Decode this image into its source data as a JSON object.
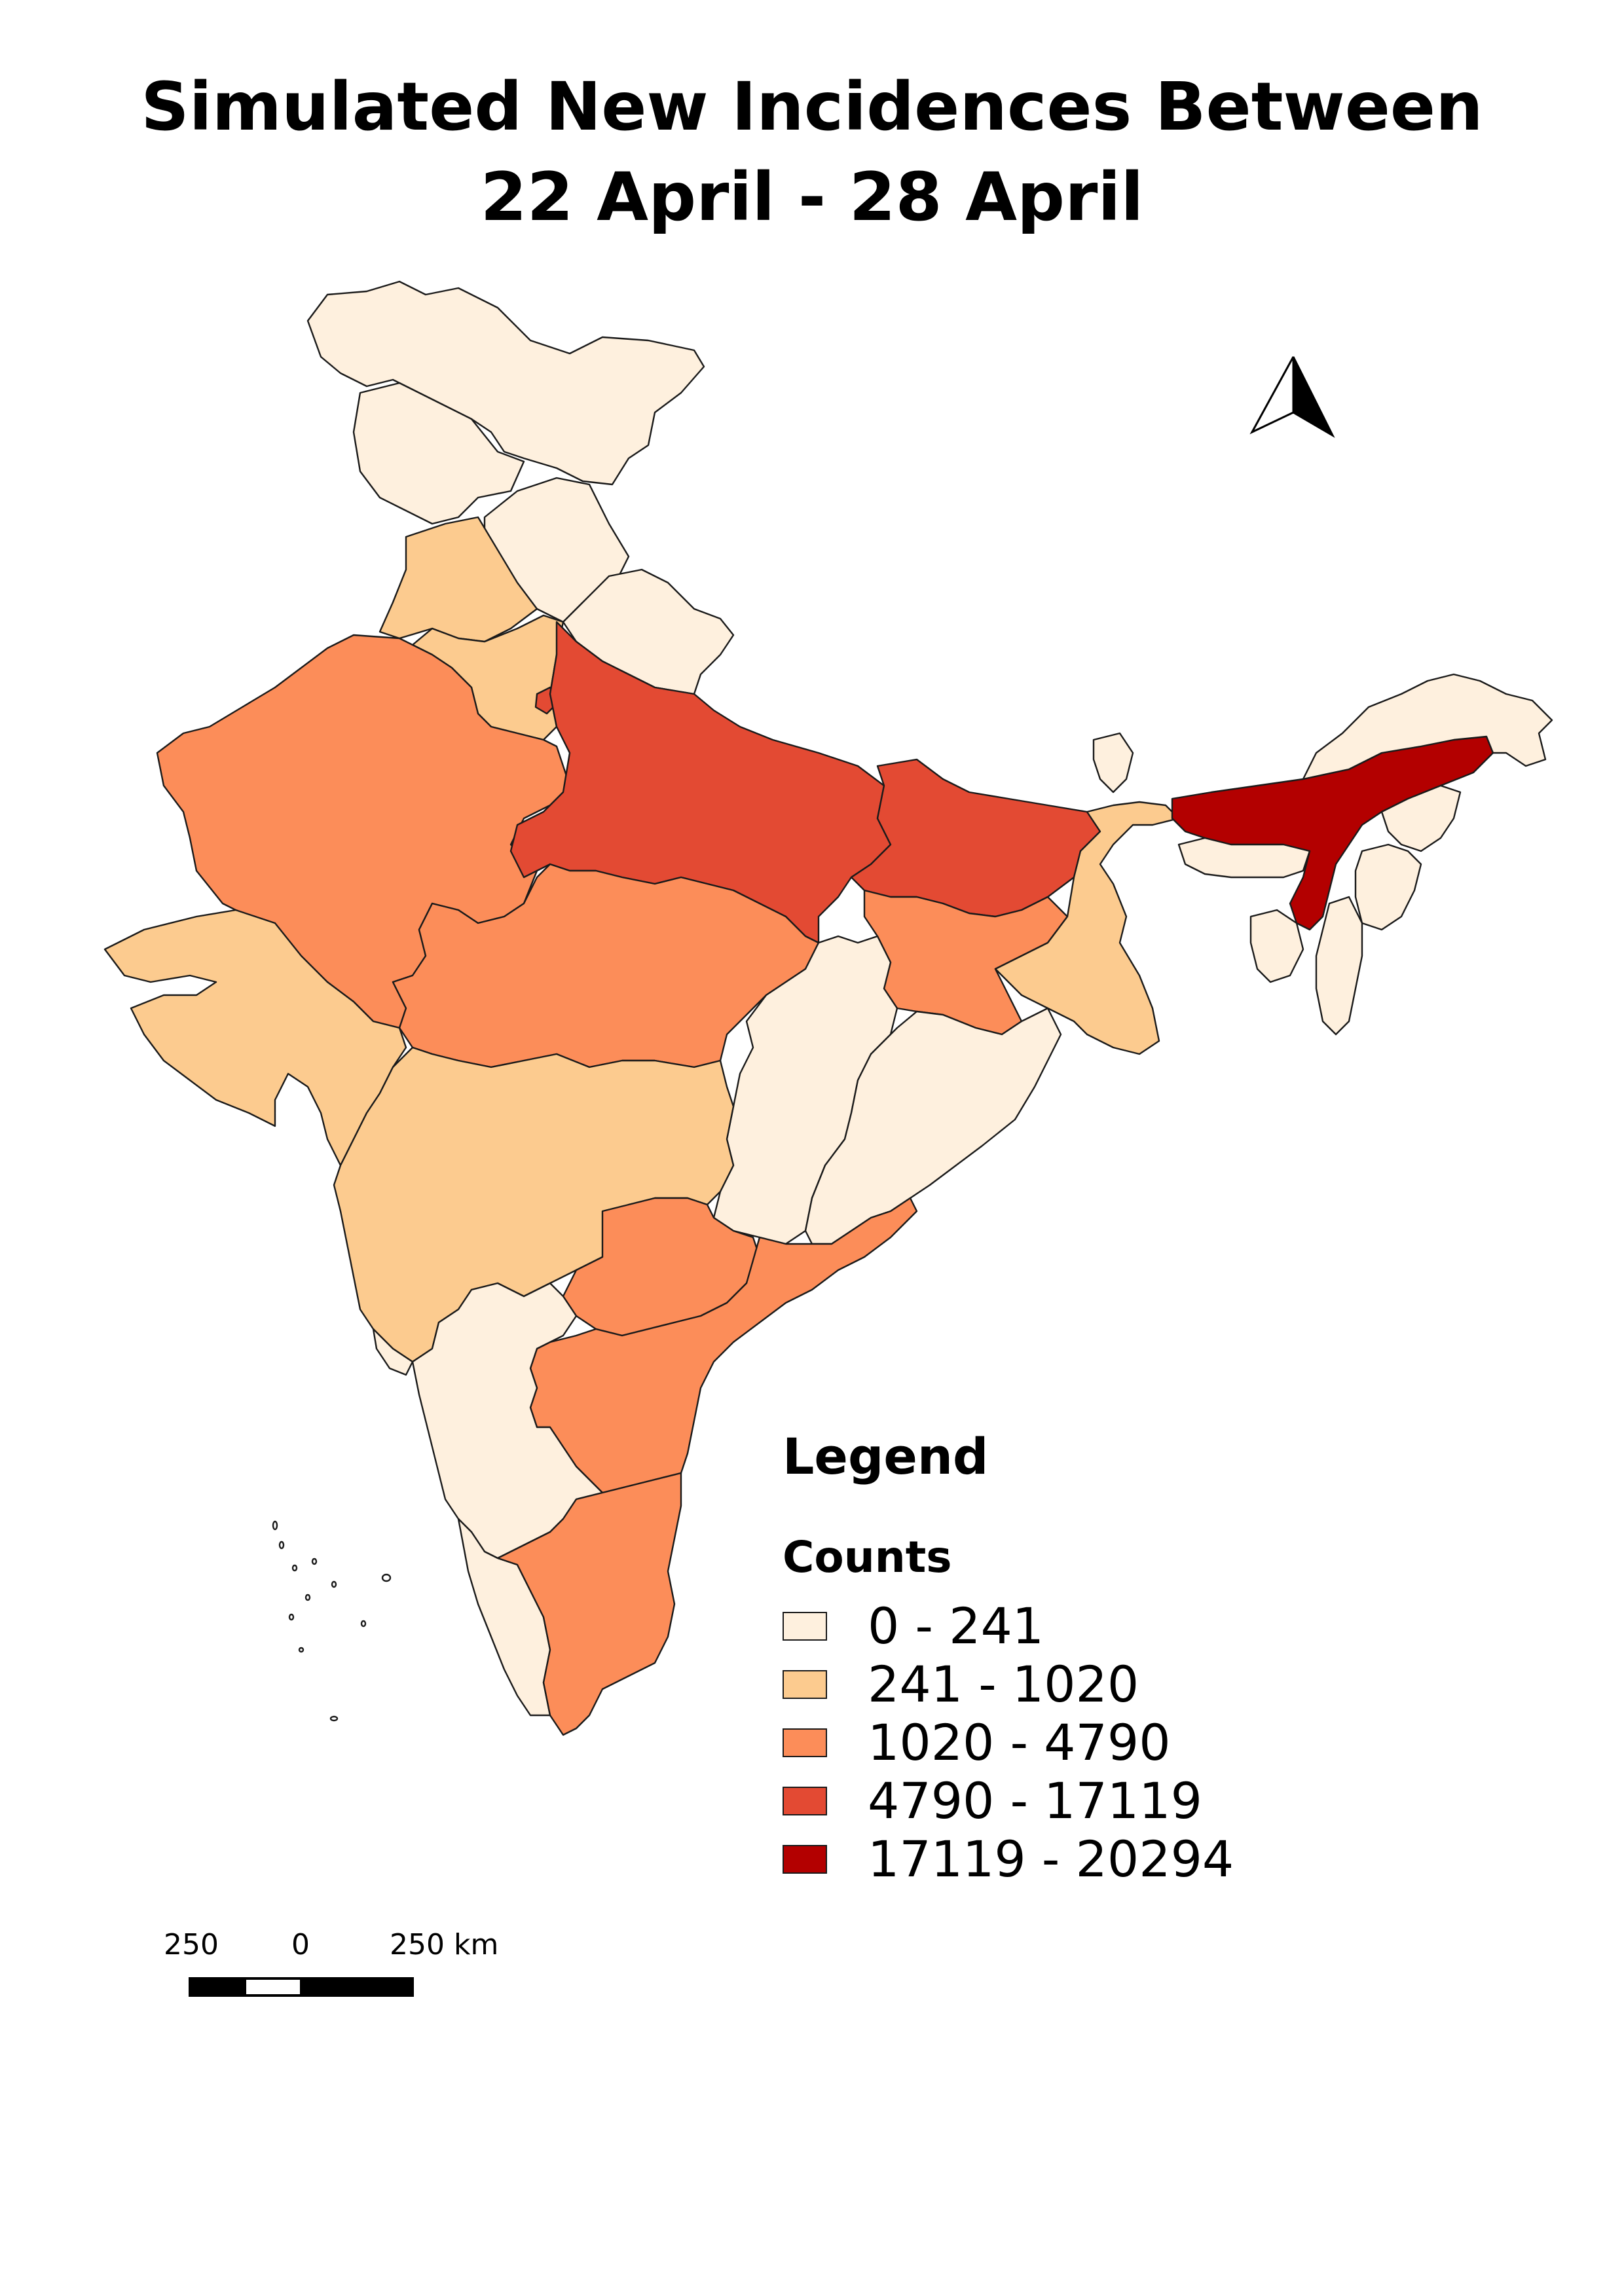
{
  "title": {
    "line1": "Simulated New Incidences Between",
    "line2": "22 April - 28 April"
  },
  "legend": {
    "heading": "Legend",
    "subheading": "Counts",
    "classes": [
      {
        "label": "0 - 241",
        "color": "#fef0de"
      },
      {
        "label": "241 - 1020",
        "color": "#fccb8f"
      },
      {
        "label": "1020 - 4790",
        "color": "#fc8d59"
      },
      {
        "label": "4790 - 17119",
        "color": "#e34a33"
      },
      {
        "label": "17119 - 20294",
        "color": "#b30000"
      }
    ]
  },
  "scale_bar": {
    "labels": [
      "250",
      "0",
      "250 km"
    ]
  },
  "north_arrow": {
    "icon": "north-arrow-icon"
  },
  "map": {
    "country": "India",
    "regions": [
      {
        "name": "Jammu and Kashmir",
        "class": "0 - 241"
      },
      {
        "name": "Himachal Pradesh",
        "class": "0 - 241"
      },
      {
        "name": "Punjab",
        "class": "241 - 1020"
      },
      {
        "name": "Uttarakhand",
        "class": "0 - 241"
      },
      {
        "name": "Haryana",
        "class": "241 - 1020"
      },
      {
        "name": "Rajasthan",
        "class": "1020 - 4790"
      },
      {
        "name": "Uttar Pradesh",
        "class": "4790 - 17119"
      },
      {
        "name": "Bihar",
        "class": "4790 - 17119"
      },
      {
        "name": "Gujarat",
        "class": "241 - 1020"
      },
      {
        "name": "Madhya Pradesh",
        "class": "1020 - 4790"
      },
      {
        "name": "Jharkhand",
        "class": "1020 - 4790"
      },
      {
        "name": "West Bengal",
        "class": "241 - 1020"
      },
      {
        "name": "Chhattisgarh",
        "class": "0 - 241"
      },
      {
        "name": "Odisha",
        "class": "0 - 241"
      },
      {
        "name": "Maharashtra",
        "class": "241 - 1020"
      },
      {
        "name": "Telangana",
        "class": "1020 - 4790"
      },
      {
        "name": "Andhra Pradesh",
        "class": "1020 - 4790"
      },
      {
        "name": "Karnataka",
        "class": "0 - 241"
      },
      {
        "name": "Goa",
        "class": "0 - 241"
      },
      {
        "name": "Kerala",
        "class": "0 - 241"
      },
      {
        "name": "Tamil Nadu",
        "class": "1020 - 4790"
      },
      {
        "name": "Sikkim",
        "class": "0 - 241"
      },
      {
        "name": "Assam",
        "class": "17119 - 20294"
      },
      {
        "name": "Arunachal Pradesh",
        "class": "0 - 241"
      },
      {
        "name": "Meghalaya",
        "class": "0 - 241"
      },
      {
        "name": "Nagaland",
        "class": "0 - 241"
      },
      {
        "name": "Manipur",
        "class": "0 - 241"
      },
      {
        "name": "Mizoram",
        "class": "0 - 241"
      },
      {
        "name": "Tripura",
        "class": "0 - 241"
      },
      {
        "name": "Delhi",
        "class": "4790 - 17119"
      }
    ]
  }
}
